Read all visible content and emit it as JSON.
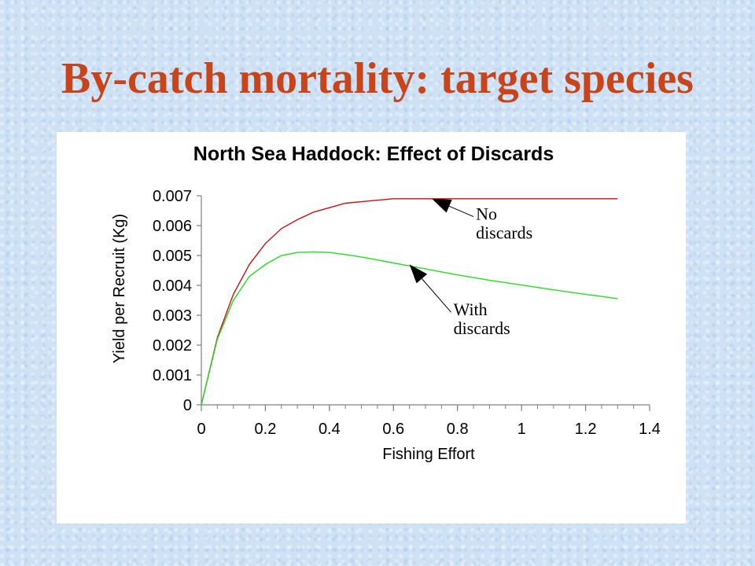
{
  "slide": {
    "title": "By-catch mortality: target species"
  },
  "chart_data": {
    "type": "line",
    "title": "North Sea Haddock: Effect of Discards",
    "xlabel": "Fishing Effort",
    "ylabel": "Yield per Recruit (Kg)",
    "xlim": [
      0,
      1.4
    ],
    "ylim": [
      0,
      0.007
    ],
    "xticks": [
      "0",
      "0.2",
      "0.4",
      "0.6",
      "0.8",
      "1",
      "1.2",
      "1.4"
    ],
    "yticks": [
      "0",
      "0.001",
      "0.002",
      "0.003",
      "0.004",
      "0.005",
      "0.006",
      "0.007"
    ],
    "x_minor_step": 0.05,
    "grid": false,
    "series": [
      {
        "color": "#cc1111",
        "x": [
          0,
          0.05,
          0.1,
          0.15,
          0.2,
          0.25,
          0.3,
          0.35,
          0.4,
          0.45,
          0.5,
          0.55,
          0.6,
          0.65,
          0.7,
          0.75,
          0.8,
          0.85,
          0.9,
          0.95,
          1.0,
          1.05,
          1.1,
          1.15,
          1.2,
          1.25,
          1.3
        ],
        "values": [
          0,
          0.00225,
          0.0037,
          0.0047,
          0.0054,
          0.0059,
          0.0062,
          0.00645,
          0.0066,
          0.00675,
          0.0068,
          0.00685,
          0.0069,
          0.0069,
          0.0069,
          0.0069,
          0.0069,
          0.0069,
          0.0069,
          0.0069,
          0.0069,
          0.0069,
          0.0069,
          0.0069,
          0.0069,
          0.0069,
          0.0069
        ]
      },
      {
        "color": "#22dd22",
        "x": [
          0,
          0.05,
          0.1,
          0.15,
          0.2,
          0.25,
          0.3,
          0.35,
          0.4,
          0.45,
          0.5,
          0.55,
          0.6,
          0.65,
          0.7,
          0.75,
          0.8,
          0.85,
          0.9,
          0.95,
          1.0,
          1.05,
          1.1,
          1.15,
          1.2,
          1.25,
          1.3
        ],
        "values": [
          0,
          0.0022,
          0.0035,
          0.0043,
          0.0047,
          0.005,
          0.0051,
          0.00512,
          0.0051,
          0.00503,
          0.00495,
          0.00485,
          0.00475,
          0.00465,
          0.00455,
          0.00445,
          0.00435,
          0.00426,
          0.00417,
          0.00409,
          0.00401,
          0.00393,
          0.00385,
          0.00377,
          0.0037,
          0.00363,
          0.00355
        ]
      }
    ],
    "annotations": [
      {
        "lines": [
          "No",
          "discards"
        ],
        "arrow_to": [
          0.72,
          0.0069
        ],
        "text_at": [
          0.85,
          0.0063
        ]
      },
      {
        "lines": [
          "With",
          "discards"
        ],
        "arrow_to": [
          0.65,
          0.0047
        ],
        "text_at": [
          0.78,
          0.0031
        ]
      }
    ]
  }
}
